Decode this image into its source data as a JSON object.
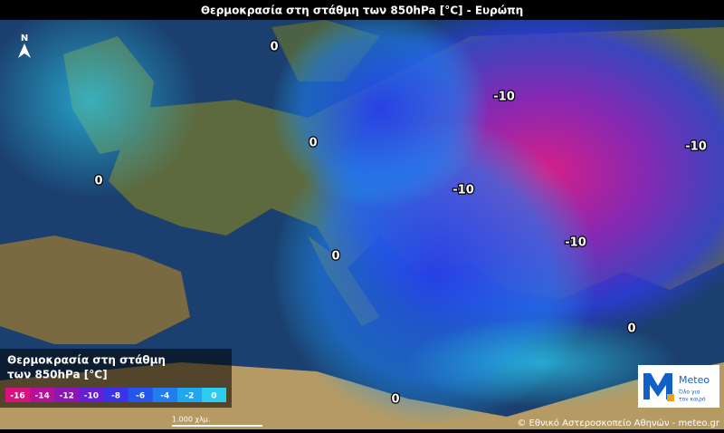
{
  "header": {
    "title": "Θερμοκρασία στη στάθμη των 850hPa [°C] - Ευρώπη"
  },
  "map": {
    "north": "N",
    "contour_labels": [
      "0",
      "-10",
      "0",
      "-10",
      "0",
      "-10",
      "-10",
      "0",
      "0",
      "0"
    ],
    "scale": "1.000 χλμ.",
    "credit": "© Εθνικό Αστεροσκοπείο Αθηνών - meteo.gr"
  },
  "legend": {
    "title_lines": [
      "Θερμοκρασία στη στάθμη",
      "των 850hPa [°C]"
    ],
    "ticks": [
      {
        "value": -16,
        "color": "#d8127e"
      },
      {
        "value": -14,
        "color": "#b5109a"
      },
      {
        "value": -12,
        "color": "#8e14b8"
      },
      {
        "value": -10,
        "color": "#6320d4"
      },
      {
        "value": -8,
        "color": "#3a34e6"
      },
      {
        "value": -6,
        "color": "#2456ee"
      },
      {
        "value": -4,
        "color": "#1f7df0"
      },
      {
        "value": -2,
        "color": "#1fa8ef"
      },
      {
        "value": 0,
        "color": "#2ccdee"
      }
    ]
  },
  "logo": {
    "name": "Meteo",
    "tagline": [
      "Όλο για",
      "τον καιρό"
    ]
  }
}
